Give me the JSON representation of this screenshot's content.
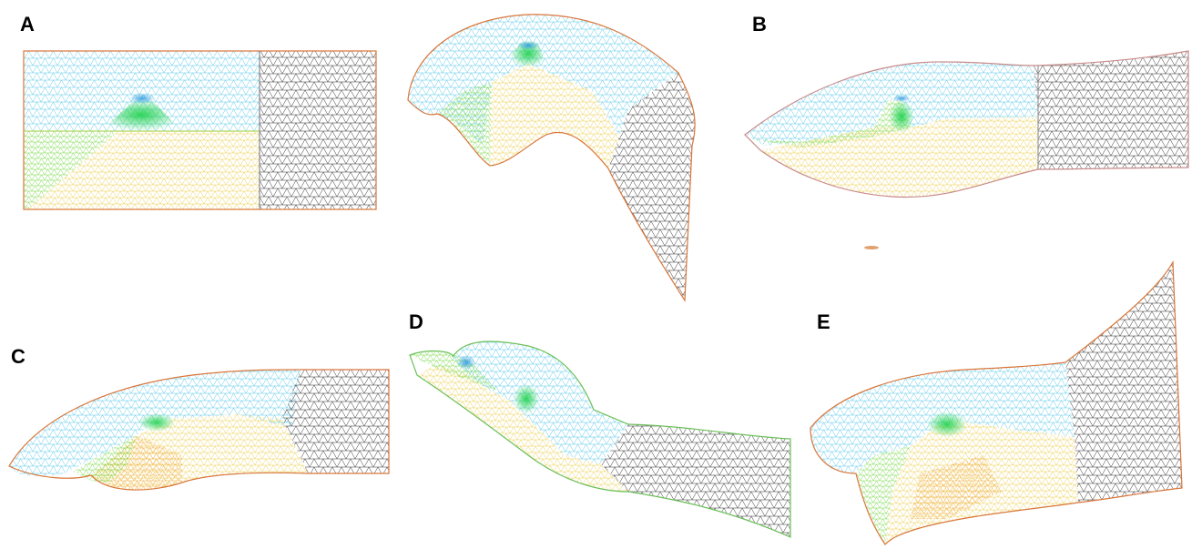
{
  "panels": {
    "a": {
      "label": "A"
    },
    "b": {
      "label": "B"
    },
    "c": {
      "label": "C"
    },
    "d": {
      "label": "D"
    },
    "e": {
      "label": "E"
    }
  },
  "colors": {
    "upper_region": "#5bc8e8",
    "lower_region": "#f2d24a",
    "orange_region": "#f0a840",
    "green_region": "#7ad84a",
    "focus_region": "#2ed24a",
    "tail_region": "#222222",
    "outline_orange": "#d9763a",
    "outline_green": "#6cc05a"
  }
}
